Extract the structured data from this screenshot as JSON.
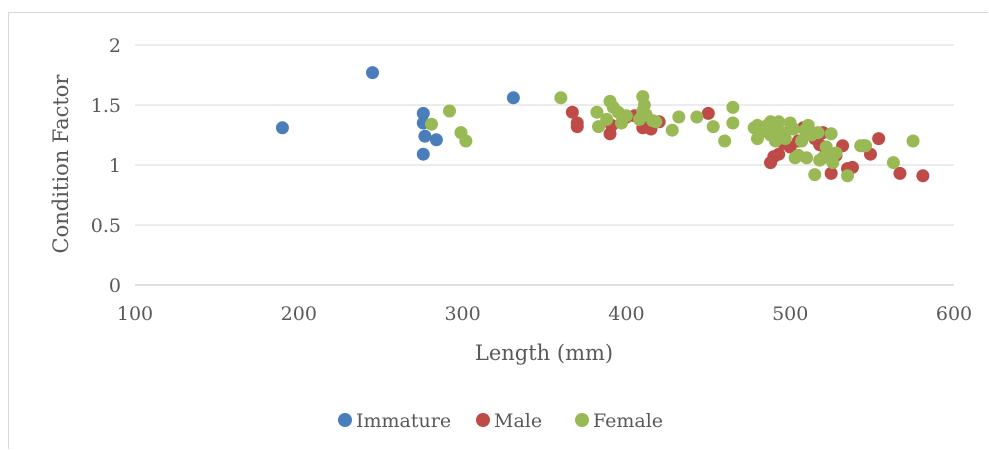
{
  "chart_data": {
    "type": "scatter",
    "title": "",
    "xlabel": "Length (mm)",
    "ylabel": "Condition Factor",
    "xlim": [
      100,
      600
    ],
    "ylim": [
      0,
      2
    ],
    "x_ticks": [
      100,
      200,
      300,
      400,
      500,
      600
    ],
    "y_ticks": [
      0,
      0.5,
      1,
      1.5,
      2
    ],
    "y_tick_labels": [
      "0",
      "0.5",
      "1",
      "1.5",
      "2"
    ],
    "grid": "horizontal",
    "legend_position": "bottom",
    "series": [
      {
        "name": "Immature",
        "color": "#4a7ebb",
        "points": [
          [
            190,
            1.31
          ],
          [
            245,
            1.77
          ],
          [
            276,
            1.43
          ],
          [
            276,
            1.35
          ],
          [
            277,
            1.24
          ],
          [
            276,
            1.09
          ],
          [
            284,
            1.21
          ],
          [
            331,
            1.56
          ]
        ]
      },
      {
        "name": "Male",
        "color": "#be4b48",
        "points": [
          [
            367,
            1.44
          ],
          [
            370,
            1.32
          ],
          [
            370,
            1.35
          ],
          [
            390,
            1.26
          ],
          [
            391,
            1.33
          ],
          [
            398,
            1.38
          ],
          [
            400,
            1.4
          ],
          [
            405,
            1.41
          ],
          [
            410,
            1.31
          ],
          [
            413,
            1.33
          ],
          [
            415,
            1.3
          ],
          [
            420,
            1.36
          ],
          [
            450,
            1.43
          ],
          [
            488,
            1.02
          ],
          [
            490,
            1.07
          ],
          [
            493,
            1.09
          ],
          [
            496,
            1.18
          ],
          [
            500,
            1.15
          ],
          [
            505,
            1.2
          ],
          [
            508,
            1.31
          ],
          [
            512,
            1.28
          ],
          [
            515,
            1.22
          ],
          [
            518,
            1.17
          ],
          [
            520,
            1.27
          ],
          [
            522,
            1.12
          ],
          [
            525,
            0.93
          ],
          [
            528,
            1.08
          ],
          [
            532,
            1.16
          ],
          [
            535,
            0.97
          ],
          [
            538,
            0.98
          ],
          [
            545,
            1.16
          ],
          [
            549,
            1.09
          ],
          [
            554,
            1.22
          ],
          [
            567,
            0.93
          ],
          [
            581,
            0.91
          ]
        ]
      },
      {
        "name": "Female",
        "color": "#98b954",
        "points": [
          [
            281,
            1.34
          ],
          [
            292,
            1.45
          ],
          [
            299,
            1.27
          ],
          [
            302,
            1.2
          ],
          [
            360,
            1.56
          ],
          [
            382,
            1.44
          ],
          [
            383,
            1.32
          ],
          [
            388,
            1.38
          ],
          [
            390,
            1.53
          ],
          [
            392,
            1.48
          ],
          [
            395,
            1.44
          ],
          [
            397,
            1.35
          ],
          [
            400,
            1.41
          ],
          [
            408,
            1.38
          ],
          [
            410,
            1.45
          ],
          [
            410,
            1.57
          ],
          [
            411,
            1.5
          ],
          [
            412,
            1.42
          ],
          [
            416,
            1.37
          ],
          [
            418,
            1.36
          ],
          [
            428,
            1.29
          ],
          [
            432,
            1.4
          ],
          [
            443,
            1.4
          ],
          [
            453,
            1.32
          ],
          [
            460,
            1.2
          ],
          [
            465,
            1.35
          ],
          [
            465,
            1.48
          ],
          [
            478,
            1.31
          ],
          [
            480,
            1.33
          ],
          [
            480,
            1.22
          ],
          [
            483,
            1.28
          ],
          [
            486,
            1.33
          ],
          [
            488,
            1.36
          ],
          [
            488,
            1.25
          ],
          [
            490,
            1.3
          ],
          [
            491,
            1.2
          ],
          [
            493,
            1.36
          ],
          [
            495,
            1.27
          ],
          [
            497,
            1.22
          ],
          [
            500,
            1.35
          ],
          [
            502,
            1.3
          ],
          [
            503,
            1.06
          ],
          [
            505,
            1.08
          ],
          [
            507,
            1.2
          ],
          [
            509,
            1.29
          ],
          [
            510,
            1.06
          ],
          [
            511,
            1.33
          ],
          [
            513,
            1.25
          ],
          [
            515,
            0.92
          ],
          [
            517,
            1.27
          ],
          [
            518,
            1.04
          ],
          [
            520,
            1.06
          ],
          [
            522,
            1.15
          ],
          [
            524,
            1.09
          ],
          [
            525,
            1.26
          ],
          [
            526,
            1.02
          ],
          [
            528,
            1.1
          ],
          [
            535,
            0.91
          ],
          [
            543,
            1.16
          ],
          [
            546,
            1.16
          ],
          [
            563,
            1.02
          ],
          [
            575,
            1.2
          ]
        ]
      }
    ]
  }
}
